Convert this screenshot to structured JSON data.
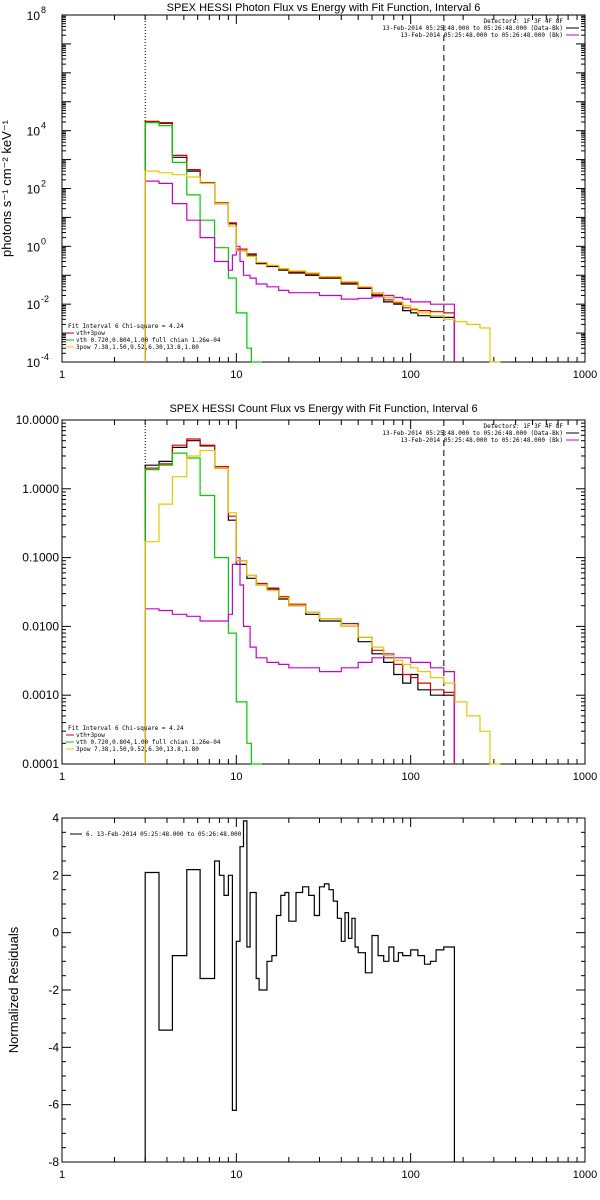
{
  "chart_data": [
    {
      "type": "line",
      "title": "SPEX HESSI Photon Flux vs Energy with Fit Function, Interval 6",
      "ylabel": "photons s⁻¹ cm⁻² keV⁻¹",
      "xlabel": "",
      "xscale": "log",
      "yscale": "log",
      "xlim": [
        1,
        1000
      ],
      "ylim": [
        0.0001,
        100000000
      ],
      "x_ticks": [
        1,
        10,
        100,
        1000
      ],
      "x_tick_labels": [
        "1",
        "10",
        "100",
        "1000"
      ],
      "y_ticks": [
        0.0001,
        0.01,
        1,
        100,
        10000,
        100000000
      ],
      "y_tick_labels": [
        {
          "base": "10",
          "exp": "-4"
        },
        {
          "base": "10",
          "exp": "-2"
        },
        {
          "base": "10",
          "exp": "0"
        },
        {
          "base": "10",
          "exp": "2"
        },
        {
          "base": "10",
          "exp": "4"
        },
        {
          "base": "10",
          "exp": "8"
        }
      ],
      "vlines": [
        3,
        155
      ],
      "legend_header": [
        "Detectors: 1F 3F 4F 8F",
        "13-Feb-2014 05:25:48.000 to 05:26:48.000 (Data-Bk)",
        "13-Feb-2014 05:25:48.000 to 05:26:48.000 (Bk)"
      ],
      "fit_info": [
        "Fit Interval  6    Chi-square = 4.24",
        "vth+3pow",
        "vth 0.720,0.804,1.00  full chian 1.26e-04",
        "3pow 7.38,1.50,9.52,6.30,13.8,1.80"
      ],
      "series": [
        {
          "color": "#000000",
          "x": [
            3,
            3.6,
            4.3,
            5.2,
            6.2,
            7.5,
            9,
            10,
            11.5,
            13,
            15,
            17.5,
            20,
            25,
            30,
            40,
            50,
            60,
            70,
            80,
            90,
            100,
            110,
            130,
            155
          ],
          "y": [
            20000,
            18000,
            1200,
            400,
            150,
            30,
            6,
            0.7,
            0.5,
            0.25,
            0.2,
            0.15,
            0.12,
            0.1,
            0.08,
            0.05,
            0.035,
            0.02,
            0.012,
            0.01,
            0.006,
            0.005,
            0.004,
            0.0035,
            0.0035
          ]
        },
        {
          "color": "#dd0000",
          "x": [
            3,
            3.6,
            4.3,
            5.2,
            6.2,
            7.5,
            9,
            10,
            11.5,
            13,
            15,
            17.5,
            20,
            25,
            30,
            40,
            50,
            60,
            70,
            80,
            90,
            100,
            110,
            130,
            155
          ],
          "y": [
            21000,
            19000,
            1400,
            450,
            160,
            32,
            6.5,
            0.8,
            0.55,
            0.27,
            0.21,
            0.16,
            0.13,
            0.11,
            0.085,
            0.055,
            0.037,
            0.022,
            0.014,
            0.011,
            0.0075,
            0.0065,
            0.006,
            0.0055,
            0.005
          ]
        },
        {
          "color": "#00cc00",
          "x": [
            3,
            3.6,
            4.3,
            5.2,
            6.2,
            7.5,
            9,
            10,
            11.5,
            12.2
          ],
          "y": [
            19000,
            15000,
            800,
            60,
            8,
            0.9,
            0.08,
            0.005,
            0.0003,
            0.0001
          ]
        },
        {
          "color": "#cc00cc",
          "x": [
            3,
            3.6,
            4.3,
            5.2,
            6.2,
            7.5,
            9,
            9.5,
            10,
            10.5,
            11,
            12,
            13,
            15,
            17.5,
            20,
            25,
            30,
            40,
            50,
            60,
            70,
            80,
            90,
            100,
            110,
            130,
            155
          ],
          "y": [
            180,
            150,
            30,
            8,
            2,
            0.3,
            0.15,
            0.5,
            1,
            0.3,
            0.1,
            0.08,
            0.05,
            0.04,
            0.03,
            0.025,
            0.025,
            0.02,
            0.015,
            0.016,
            0.018,
            0.02,
            0.017,
            0.015,
            0.012,
            0.012,
            0.01,
            0.01
          ]
        },
        {
          "color": "#e8c800",
          "x": [
            3,
            3.6,
            4.3,
            5.2,
            6.2,
            7.5,
            9,
            10,
            11.5,
            13,
            15,
            17.5,
            20,
            25,
            30,
            40,
            50,
            60,
            70,
            80,
            90,
            100,
            110,
            130,
            155,
            180,
            210,
            250,
            285
          ],
          "y": [
            400,
            350,
            300,
            250,
            150,
            30,
            5,
            0.7,
            0.45,
            0.28,
            0.22,
            0.17,
            0.14,
            0.12,
            0.09,
            0.06,
            0.04,
            0.025,
            0.017,
            0.012,
            0.009,
            0.007,
            0.005,
            0.004,
            0.003,
            0.0025,
            0.002,
            0.0015,
            0.0001
          ]
        }
      ]
    },
    {
      "type": "line",
      "title": "SPEX HESSI Count Flux vs Energy with Fit Function, Interval 6",
      "xlabel": "",
      "ylabel": "",
      "xscale": "log",
      "yscale": "log",
      "xlim": [
        1,
        1000
      ],
      "ylim": [
        0.0001,
        10
      ],
      "x_ticks": [
        1,
        10,
        100,
        1000
      ],
      "x_tick_labels": [
        "1",
        "10",
        "100",
        "1000"
      ],
      "y_ticks": [
        0.0001,
        0.001,
        0.01,
        0.1,
        1,
        10
      ],
      "y_tick_labels": [
        "0.0001",
        "0.0010",
        "0.0100",
        "0.1000",
        "1.0000",
        "10.0000"
      ],
      "vlines": [
        3,
        155
      ],
      "legend_header": [
        "Detectors: 1F 3F 4F 8F",
        "13-Feb-2014 05:25:48.000 to 05:26:48.000 (Data-Bk)",
        "13-Feb-2014 05:25:48.000 to 05:26:48.000 (Bk)"
      ],
      "fit_info": [
        "Fit Interval  6    Chi-square = 4.24",
        "vth+3pow",
        "vth 0.720,0.804,1.00  full chian 1.26e-04",
        "3pow 7.38,1.50,9.52,6.30,13.8,1.80"
      ],
      "series": [
        {
          "color": "#000000",
          "x": [
            3,
            3.6,
            4.3,
            5.2,
            6.2,
            7.5,
            9,
            10,
            11.5,
            13,
            15,
            17.5,
            20,
            25,
            30,
            40,
            50,
            60,
            70,
            80,
            90,
            100,
            110,
            130,
            155
          ],
          "y": [
            2.2,
            2.5,
            4.0,
            5.0,
            4.2,
            2.0,
            0.35,
            0.08,
            0.05,
            0.04,
            0.035,
            0.025,
            0.02,
            0.015,
            0.012,
            0.01,
            0.006,
            0.004,
            0.003,
            0.002,
            0.0015,
            0.002,
            0.0012,
            0.001,
            0.001
          ]
        },
        {
          "color": "#dd0000",
          "x": [
            3,
            3.6,
            4.3,
            5.2,
            6.2,
            7.5,
            9,
            10,
            11.5,
            13,
            15,
            17.5,
            20,
            25,
            30,
            40,
            50,
            60,
            70,
            80,
            90,
            100,
            110,
            130,
            155
          ],
          "y": [
            2.0,
            2.3,
            4.3,
            5.3,
            4.3,
            2.1,
            0.4,
            0.09,
            0.055,
            0.042,
            0.036,
            0.027,
            0.021,
            0.016,
            0.013,
            0.011,
            0.007,
            0.0045,
            0.0035,
            0.0028,
            0.002,
            0.0018,
            0.0015,
            0.0012,
            0.0011
          ]
        },
        {
          "color": "#00cc00",
          "x": [
            3,
            3.6,
            4.3,
            5.2,
            6.2,
            7.5,
            9,
            10,
            11.5,
            12.2
          ],
          "y": [
            1.9,
            2.2,
            3.3,
            2.8,
            0.8,
            0.1,
            0.008,
            0.0008,
            0.0002,
            0.0001
          ]
        },
        {
          "color": "#cc00cc",
          "x": [
            3,
            3.6,
            4.3,
            5.2,
            6.2,
            7.5,
            9,
            9.5,
            10,
            10.5,
            11,
            12,
            13,
            15,
            17.5,
            20,
            25,
            30,
            40,
            50,
            60,
            70,
            80,
            90,
            100,
            110,
            130,
            155
          ],
          "y": [
            0.018,
            0.017,
            0.015,
            0.014,
            0.012,
            0.012,
            0.015,
            0.08,
            0.1,
            0.04,
            0.01,
            0.005,
            0.0035,
            0.003,
            0.0028,
            0.0025,
            0.0025,
            0.0022,
            0.0025,
            0.003,
            0.0035,
            0.004,
            0.0035,
            0.0035,
            0.003,
            0.003,
            0.0025,
            0.0022
          ]
        },
        {
          "color": "#e8c800",
          "x": [
            3,
            3.6,
            4.3,
            5.2,
            6.2,
            7.5,
            9,
            10,
            11.5,
            13,
            15,
            17.5,
            20,
            25,
            30,
            40,
            50,
            60,
            70,
            80,
            90,
            100,
            110,
            130,
            155,
            180,
            210,
            250,
            285
          ],
          "y": [
            0.17,
            0.6,
            1.5,
            3.0,
            3.6,
            2.0,
            0.45,
            0.09,
            0.055,
            0.04,
            0.033,
            0.026,
            0.02,
            0.016,
            0.013,
            0.01,
            0.007,
            0.005,
            0.0038,
            0.0032,
            0.0028,
            0.0025,
            0.0022,
            0.0018,
            0.0015,
            0.0008,
            0.0005,
            0.0003,
            0.0001
          ]
        }
      ]
    },
    {
      "type": "line",
      "title": "",
      "xlabel": "",
      "ylabel": "Normalized Residuals",
      "xscale": "log",
      "yscale": "linear",
      "xlim": [
        1,
        1000
      ],
      "ylim": [
        -8,
        4
      ],
      "x_ticks": [
        1,
        10,
        100,
        1000
      ],
      "x_tick_labels": [
        "1",
        "10",
        "100",
        "1000"
      ],
      "y_ticks": [
        -8,
        -6,
        -4,
        -2,
        0,
        2,
        4
      ],
      "y_tick_labels": [
        "-8",
        "-6",
        "-4",
        "-2",
        "0",
        "2",
        "4"
      ],
      "legend": [
        "6. 13-Feb-2014 05:25:48.000 to 05:26:48.000"
      ],
      "series": [
        {
          "color": "#000000",
          "x": [
            3,
            3.6,
            4.3,
            5.2,
            6.2,
            7.5,
            8,
            8.5,
            9,
            9.5,
            10,
            10.5,
            11,
            11.5,
            12,
            13,
            13.5,
            15,
            16,
            17,
            18,
            19,
            20,
            22,
            24,
            26,
            28,
            30,
            32,
            34,
            36,
            38,
            40,
            42,
            44,
            46,
            48,
            50,
            55,
            60,
            65,
            70,
            75,
            80,
            85,
            90,
            100,
            110,
            120,
            130,
            140,
            155
          ],
          "y": [
            2.1,
            -3.4,
            -0.8,
            2.2,
            -1.6,
            2.5,
            2.0,
            1.3,
            2.0,
            -6.2,
            -0.3,
            3.0,
            3.9,
            -0.5,
            1.4,
            -1.6,
            -2.0,
            -1.0,
            -0.8,
            0.6,
            1.3,
            1.4,
            0.4,
            1.4,
            1.6,
            1.3,
            0.6,
            1.6,
            1.7,
            1.5,
            1.1,
            0.5,
            -0.3,
            0.7,
            -0.2,
            0.5,
            -0.5,
            -0.7,
            -1.4,
            -0.1,
            -0.8,
            -1.0,
            -0.5,
            -1.0,
            -0.7,
            -0.8,
            -0.6,
            -0.8,
            -1.1,
            -1.0,
            -0.6,
            -0.5
          ]
        }
      ]
    }
  ]
}
